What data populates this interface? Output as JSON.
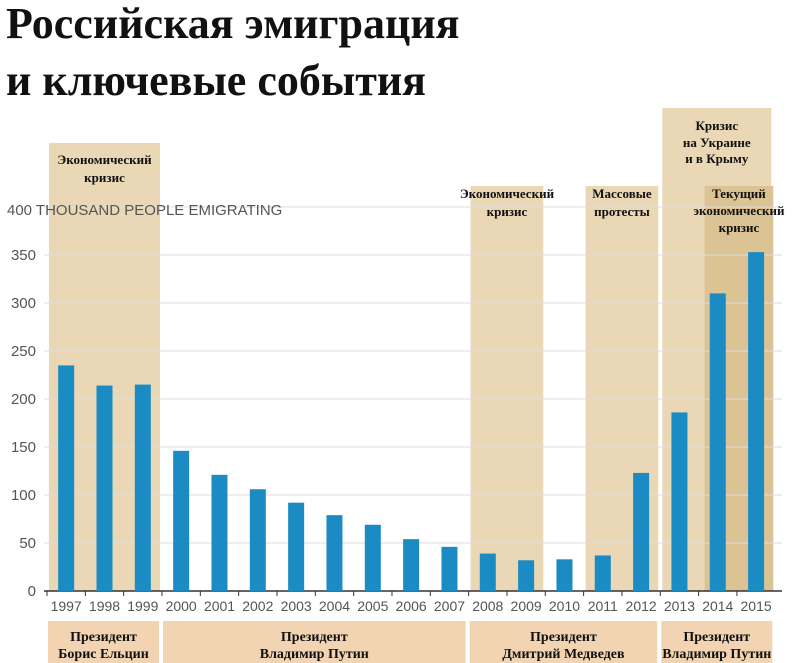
{
  "title": [
    "Российская эмиграция",
    "и ключевые события"
  ],
  "colors": {
    "bar": "#1a8cc3",
    "band": "#e9d7b5",
    "band_strong": "#dcc393",
    "president_band": "#f2d3b2",
    "grid": "#dddddd",
    "axis": "#333333"
  },
  "chart_data": {
    "type": "bar",
    "title": "Российская эмиграция и ключевые события",
    "ylabel": "400 THOUSAND PEOPLE EMIGRATING",
    "ylim": [
      0,
      400
    ],
    "yticks": [
      0,
      50,
      100,
      150,
      200,
      250,
      300,
      350,
      400
    ],
    "categories": [
      "1997",
      "1998",
      "1999",
      "2000",
      "2001",
      "2002",
      "2003",
      "2004",
      "2005",
      "2006",
      "2007",
      "2008",
      "2009",
      "2010",
      "2011",
      "2012",
      "2013",
      "2014",
      "2015"
    ],
    "values": [
      235,
      214,
      215,
      146,
      121,
      106,
      92,
      79,
      69,
      54,
      46,
      39,
      32,
      33,
      37,
      123,
      186,
      310,
      353
    ],
    "events": [
      {
        "lines": [
          "Экономический",
          "кризис"
        ],
        "from": "1997",
        "to": "1999"
      },
      {
        "lines": [
          "Экономический",
          "кризис"
        ],
        "from": "2008",
        "to": "2009"
      },
      {
        "lines": [
          "Массовые",
          "протесты"
        ],
        "from": "2011",
        "to": "2012"
      },
      {
        "lines": [
          "Кризис",
          "на Украине",
          "и в Крыму"
        ],
        "from": "2013",
        "to": "2015"
      },
      {
        "lines": [
          "Текущий",
          "экономический",
          "кризис"
        ],
        "from": "2014",
        "to": "2015"
      }
    ],
    "presidents": [
      {
        "lines": [
          "Президент",
          "Борис Ельцин"
        ],
        "from": "1997",
        "to": "1999"
      },
      {
        "lines": [
          "Президент",
          "Владимир Путин"
        ],
        "from": "2000",
        "to": "2007"
      },
      {
        "lines": [
          "Президент",
          "Дмитрий Медведев"
        ],
        "from": "2008",
        "to": "2012"
      },
      {
        "lines": [
          "Президент",
          "Владимир Путин"
        ],
        "from": "2013",
        "to": "2015"
      }
    ]
  }
}
